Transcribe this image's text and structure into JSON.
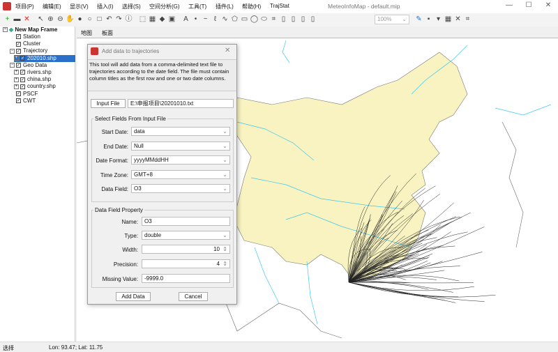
{
  "app": {
    "title": "MeteoInfoMap - default.mip"
  },
  "menu": [
    "项目(P)",
    "编辑(E)",
    "显示(V)",
    "插入(I)",
    "选择(S)",
    "空间分析(G)",
    "工具(T)",
    "插件(L)",
    "帮助(H)",
    "TrajStat"
  ],
  "toolbar": {
    "zoom_value": "100%",
    "icons": [
      "add-layer-icon",
      "open-folder-icon",
      "remove-icon",
      "select-pointer-icon",
      "zoom-in-icon",
      "zoom-out-icon",
      "pan-hand-icon",
      "full-extent-globe-icon",
      "magnifier-icon",
      "zoom-rect-icon",
      "undo-icon",
      "redo-icon",
      "identify-icon",
      "selection-icon",
      "attribute-table-icon",
      "tag-icon",
      "image-icon",
      "text-icon",
      "point-icon",
      "polyline-icon",
      "freehand-icon",
      "curve-icon",
      "polygon-icon",
      "rectangle-icon",
      "circle-icon",
      "ellipse-icon",
      "crop-icon",
      "page-icon",
      "export-icon",
      "print-icon",
      "fit-icon",
      "pen-icon",
      "save-icon",
      "dropdown-icon",
      "grid-icon",
      "close-icon",
      "frame-icon"
    ]
  },
  "tree": {
    "root": "New Map Frame",
    "items": [
      {
        "label": "Station",
        "level": 1,
        "checked": true
      },
      {
        "label": "Cluster",
        "level": 1,
        "checked": true
      },
      {
        "label": "Trajectory",
        "level": 1,
        "checked": true,
        "expanded": true
      },
      {
        "label": "202010.shp",
        "level": 2,
        "checked": true,
        "selected": true
      },
      {
        "label": "Geo Data",
        "level": 1,
        "checked": true,
        "expanded": true
      },
      {
        "label": "rivers.shp",
        "level": 2,
        "checked": true
      },
      {
        "label": "china.shp",
        "level": 2,
        "checked": true
      },
      {
        "label": "country.shp",
        "level": 2,
        "checked": true
      },
      {
        "label": "PSCF",
        "level": 1,
        "checked": true
      },
      {
        "label": "CWT",
        "level": 1,
        "checked": true
      }
    ]
  },
  "tabs": [
    "地图",
    "板面"
  ],
  "dialog": {
    "title": "Add data to trajectories",
    "description": "This tool will add data from a comma-delimited text file to trajectories according to the date field. The file must contain column titles as the first row and one or two date columns.",
    "input_file_label": "Input File",
    "input_file_value": "E:\\申报项目\\20201010.txt",
    "group1": "Select Fields From Input File",
    "fields": [
      {
        "label": "Start Date:",
        "value": "data"
      },
      {
        "label": "End Date:",
        "value": "Null"
      },
      {
        "label": "Date Format:",
        "value": "yyyyMMddHH"
      },
      {
        "label": "Time Zone:",
        "value": "GMT+8"
      },
      {
        "label": "Data Field:",
        "value": "O3"
      }
    ],
    "group2": "Data Field Property",
    "props": {
      "name_label": "Name:",
      "name": "O3",
      "type_label": "Type:",
      "type": "double",
      "width_label": "Width:",
      "width": "10",
      "precision_label": "Precision:",
      "precision": "4",
      "missing_label": "Missing Value:",
      "missing": "-9999.0"
    },
    "add_label": "Add Data",
    "cancel_label": "Cancel"
  },
  "status": {
    "mode": "选择",
    "coords": "Lon: 93.47; Lat: 11.75"
  },
  "colors": {
    "china_fill": "#f8f3c0",
    "rivers": "#3cc8f0",
    "trajectory": "#222222",
    "selection": "#2a6fc9"
  }
}
